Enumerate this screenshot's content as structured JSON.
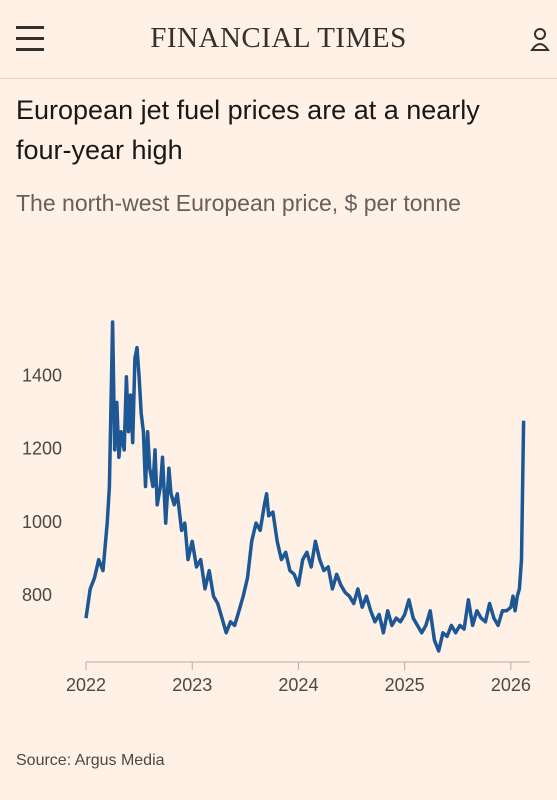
{
  "header": {
    "brand": "FINANCIAL TIMES"
  },
  "chart_data": {
    "type": "line",
    "title": "European jet fuel prices are at a nearly four-year high",
    "subtitle": "The north-west European price, $ per tonne",
    "source": "Source: Argus Media",
    "x": [
      2022.0,
      2022.04,
      2022.08,
      2022.12,
      2022.16,
      2022.2,
      2022.22,
      2022.25,
      2022.27,
      2022.29,
      2022.31,
      2022.33,
      2022.36,
      2022.38,
      2022.4,
      2022.42,
      2022.44,
      2022.46,
      2022.48,
      2022.5,
      2022.52,
      2022.54,
      2022.56,
      2022.58,
      2022.6,
      2022.63,
      2022.65,
      2022.67,
      2022.7,
      2022.72,
      2022.75,
      2022.78,
      2022.8,
      2022.83,
      2022.86,
      2022.9,
      2022.93,
      2022.96,
      2023.0,
      2023.04,
      2023.08,
      2023.12,
      2023.16,
      2023.2,
      2023.24,
      2023.28,
      2023.32,
      2023.36,
      2023.4,
      2023.44,
      2023.48,
      2023.52,
      2023.56,
      2023.6,
      2023.64,
      2023.68,
      2023.7,
      2023.72,
      2023.76,
      2023.8,
      2023.84,
      2023.88,
      2023.92,
      2023.96,
      2024.0,
      2024.04,
      2024.08,
      2024.12,
      2024.16,
      2024.2,
      2024.24,
      2024.28,
      2024.32,
      2024.36,
      2024.4,
      2024.44,
      2024.48,
      2024.52,
      2024.56,
      2024.6,
      2024.64,
      2024.68,
      2024.72,
      2024.76,
      2024.8,
      2024.84,
      2024.88,
      2024.92,
      2024.96,
      2025.0,
      2025.04,
      2025.08,
      2025.12,
      2025.16,
      2025.2,
      2025.24,
      2025.28,
      2025.32,
      2025.36,
      2025.4,
      2025.44,
      2025.48,
      2025.52,
      2025.56,
      2025.6,
      2025.64,
      2025.68,
      2025.72,
      2025.76,
      2025.8,
      2025.84,
      2025.88,
      2025.92,
      2025.96,
      2026.0,
      2026.02,
      2026.04,
      2026.06,
      2026.08,
      2026.1,
      2026.12
    ],
    "series": [
      {
        "name": "Jet fuel price",
        "color": "#1d5796",
        "values": [
          740,
          820,
          850,
          900,
          870,
          1000,
          1100,
          1550,
          1200,
          1330,
          1180,
          1250,
          1200,
          1400,
          1250,
          1350,
          1220,
          1450,
          1480,
          1400,
          1300,
          1250,
          1100,
          1250,
          1150,
          1100,
          1200,
          1050,
          1100,
          1180,
          1000,
          1150,
          1080,
          1050,
          1080,
          980,
          1000,
          900,
          950,
          880,
          900,
          820,
          870,
          800,
          780,
          740,
          700,
          730,
          720,
          760,
          800,
          850,
          950,
          1000,
          980,
          1050,
          1080,
          1020,
          1030,
          950,
          900,
          920,
          870,
          860,
          830,
          900,
          920,
          880,
          950,
          900,
          870,
          880,
          820,
          860,
          830,
          810,
          800,
          780,
          820,
          770,
          800,
          760,
          730,
          750,
          700,
          760,
          720,
          740,
          730,
          750,
          790,
          740,
          720,
          700,
          720,
          760,
          680,
          650,
          700,
          690,
          720,
          700,
          720,
          710,
          790,
          720,
          760,
          740,
          730,
          780,
          740,
          720,
          760,
          760,
          770,
          800,
          760,
          800,
          820,
          900,
          1280
        ]
      }
    ],
    "xlim": [
      2022,
      2026.18
    ],
    "xticks": [
      2022,
      2023,
      2024,
      2025,
      2026
    ],
    "ylim": [
      620,
      1580
    ],
    "yticks": [
      800,
      1000,
      1200,
      1400
    ],
    "grid": false
  }
}
